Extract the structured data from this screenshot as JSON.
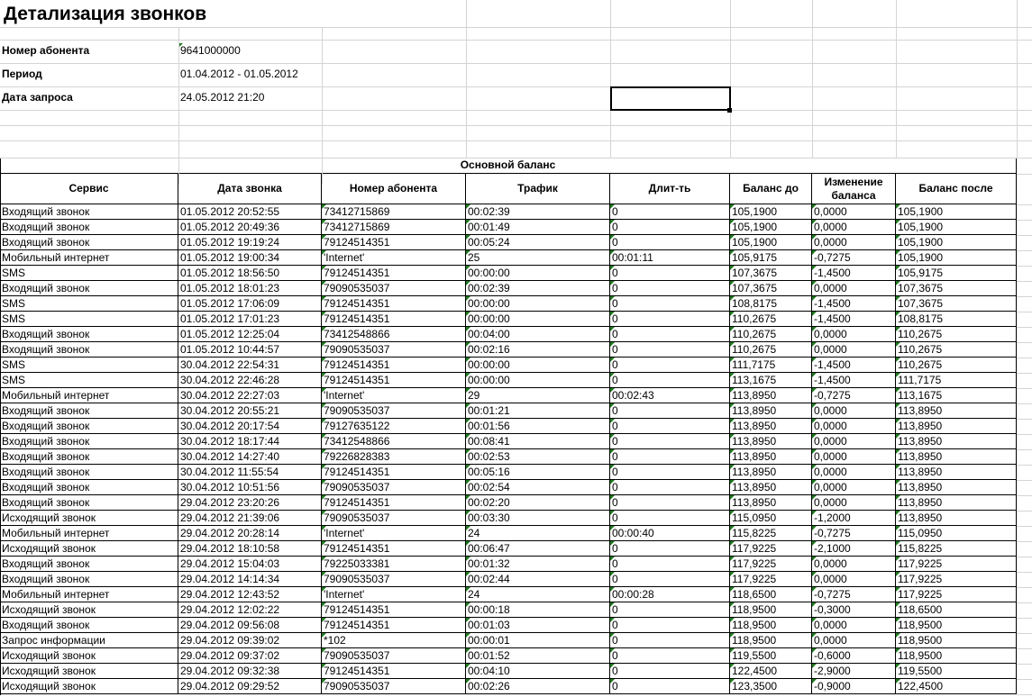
{
  "header": {
    "title": "Детализация звонков",
    "fields": [
      {
        "label": "Номер абонента",
        "value": "9641000000"
      },
      {
        "label": "Период",
        "value": "01.04.2012 - 01.05.2012"
      },
      {
        "label": "Дата запроса",
        "value": "24.05.2012 21:20"
      }
    ]
  },
  "table": {
    "caption": "Основной баланс",
    "columns": [
      "Сервис",
      "Дата звонка",
      "Номер абонента",
      "Трафик",
      "Длит-ть",
      "Баланс до",
      "Изменение баланса",
      "Баланс после"
    ],
    "rows": [
      [
        "Входящий звонок",
        "01.05.2012 20:52:55",
        "73412715869",
        "00:02:39",
        "0",
        "105,1900",
        "0,0000",
        "105,1900"
      ],
      [
        "Входящий звонок",
        "01.05.2012 20:49:36",
        "73412715869",
        "00:01:49",
        "0",
        "105,1900",
        "0,0000",
        "105,1900"
      ],
      [
        "Входящий звонок",
        "01.05.2012 19:19:24",
        "79124514351",
        "00:05:24",
        "0",
        "105,1900",
        "0,0000",
        "105,1900"
      ],
      [
        "Мобильный интернет",
        "01.05.2012 19:00:34",
        "'Internet'",
        "25",
        "00:01:11",
        "105,9175",
        "-0,7275",
        "105,1900"
      ],
      [
        "SMS",
        "01.05.2012 18:56:50",
        "79124514351",
        "00:00:00",
        "0",
        "107,3675",
        "-1,4500",
        "105,9175"
      ],
      [
        "Входящий звонок",
        "01.05.2012 18:01:23",
        "79090535037",
        "00:02:39",
        "0",
        "107,3675",
        "0,0000",
        "107,3675"
      ],
      [
        "SMS",
        "01.05.2012 17:06:09",
        "79124514351",
        "00:00:00",
        "0",
        "108,8175",
        "-1,4500",
        "107,3675"
      ],
      [
        "SMS",
        "01.05.2012 17:01:23",
        "79124514351",
        "00:00:00",
        "0",
        "110,2675",
        "-1,4500",
        "108,8175"
      ],
      [
        "Входящий звонок",
        "01.05.2012 12:25:04",
        "73412548866",
        "00:04:00",
        "0",
        "110,2675",
        "0,0000",
        "110,2675"
      ],
      [
        "Входящий звонок",
        "01.05.2012 10:44:57",
        "79090535037",
        "00:02:16",
        "0",
        "110,2675",
        "0,0000",
        "110,2675"
      ],
      [
        "SMS",
        "30.04.2012 22:54:31",
        "79124514351",
        "00:00:00",
        "0",
        "111,7175",
        "-1,4500",
        "110,2675"
      ],
      [
        "SMS",
        "30.04.2012 22:46:28",
        "79124514351",
        "00:00:00",
        "0",
        "113,1675",
        "-1,4500",
        "111,7175"
      ],
      [
        "Мобильный интернет",
        "30.04.2012 22:27:03",
        "'Internet'",
        "29",
        "00:02:43",
        "113,8950",
        "-0,7275",
        "113,1675"
      ],
      [
        "Входящий звонок",
        "30.04.2012 20:55:21",
        "79090535037",
        "00:01:21",
        "0",
        "113,8950",
        "0,0000",
        "113,8950"
      ],
      [
        "Входящий звонок",
        "30.04.2012 20:17:54",
        "79127635122",
        "00:01:56",
        "0",
        "113,8950",
        "0,0000",
        "113,8950"
      ],
      [
        "Входящий звонок",
        "30.04.2012 18:17:44",
        "73412548866",
        "00:08:41",
        "0",
        "113,8950",
        "0,0000",
        "113,8950"
      ],
      [
        "Входящий звонок",
        "30.04.2012 14:27:40",
        "79226828383",
        "00:02:53",
        "0",
        "113,8950",
        "0,0000",
        "113,8950"
      ],
      [
        "Входящий звонок",
        "30.04.2012 11:55:54",
        "79124514351",
        "00:05:16",
        "0",
        "113,8950",
        "0,0000",
        "113,8950"
      ],
      [
        "Входящий звонок",
        "30.04.2012 10:51:56",
        "79090535037",
        "00:02:54",
        "0",
        "113,8950",
        "0,0000",
        "113,8950"
      ],
      [
        "Входящий звонок",
        "29.04.2012 23:20:26",
        "79124514351",
        "00:02:20",
        "0",
        "113,8950",
        "0,0000",
        "113,8950"
      ],
      [
        "Исходящий звонок",
        "29.04.2012 21:39:06",
        "79090535037",
        "00:03:30",
        "0",
        "115,0950",
        "-1,2000",
        "113,8950"
      ],
      [
        "Мобильный интернет",
        "29.04.2012 20:28:14",
        "'Internet'",
        "24",
        "00:00:40",
        "115,8225",
        "-0,7275",
        "115,0950"
      ],
      [
        "Исходящий звонок",
        "29.04.2012 18:10:58",
        "79124514351",
        "00:06:47",
        "0",
        "117,9225",
        "-2,1000",
        "115,8225"
      ],
      [
        "Входящий звонок",
        "29.04.2012 15:04:03",
        "79225033381",
        "00:01:32",
        "0",
        "117,9225",
        "0,0000",
        "117,9225"
      ],
      [
        "Входящий звонок",
        "29.04.2012 14:14:34",
        "79090535037",
        "00:02:44",
        "0",
        "117,9225",
        "0,0000",
        "117,9225"
      ],
      [
        "Мобильный интернет",
        "29.04.2012 12:43:52",
        "'Internet'",
        "24",
        "00:00:28",
        "118,6500",
        "-0,7275",
        "117,9225"
      ],
      [
        "Исходящий звонок",
        "29.04.2012 12:02:22",
        "79124514351",
        "00:00:18",
        "0",
        "118,9500",
        "-0,3000",
        "118,6500"
      ],
      [
        "Входящий звонок",
        "29.04.2012 09:56:08",
        "79124514351",
        "00:01:03",
        "0",
        "118,9500",
        "0,0000",
        "118,9500"
      ],
      [
        "Запрос информации",
        "29.04.2012 09:39:02",
        "*102",
        "00:00:01",
        "0",
        "118,9500",
        "0,0000",
        "118,9500"
      ],
      [
        "Исходящий звонок",
        "29.04.2012 09:37:02",
        "79090535037",
        "00:01:52",
        "0",
        "119,5500",
        "-0,6000",
        "118,9500"
      ],
      [
        "Исходящий звонок",
        "29.04.2012 09:32:38",
        "79124514351",
        "00:04:10",
        "0",
        "122,4500",
        "-2,9000",
        "119,5500"
      ],
      [
        "Исходящий звонок",
        "29.04.2012 09:29:52",
        "79090535037",
        "00:02:26",
        "0",
        "123,3500",
        "-0,9000",
        "122,4500"
      ]
    ]
  }
}
